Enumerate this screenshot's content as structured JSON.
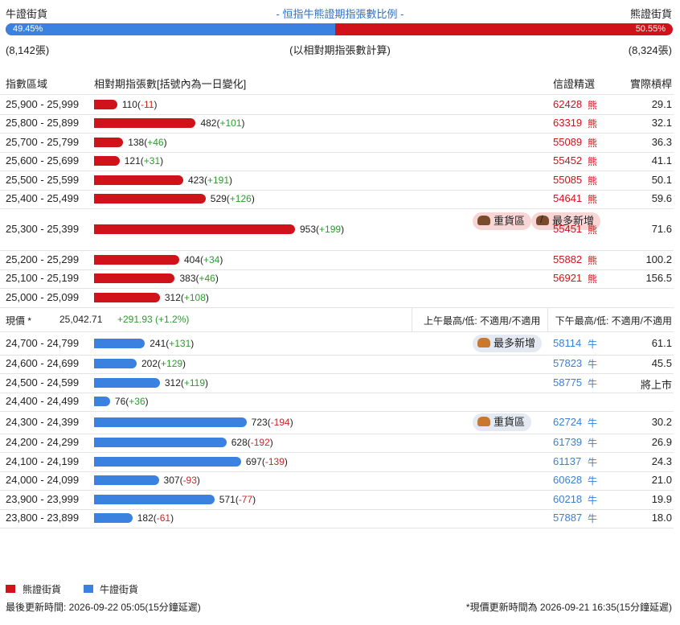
{
  "header": {
    "left": "牛證街貨",
    "title": "- 恒指牛熊證期指張數比例 -",
    "right": "熊證街貨",
    "bull_pct": {
      "value": 49.45,
      "label": "49.45%"
    },
    "bear_pct": {
      "value": 50.55,
      "label": "50.55%"
    },
    "bull_total": "(8,142張)",
    "note": "(以相對期指張數計算)",
    "bear_total": "(8,324張)"
  },
  "columns": [
    "指數區域",
    "相對期指張數[括號內為一日變化]",
    "信證精選",
    "實際槓桿"
  ],
  "bear_rows": [
    {
      "range": "25,900 - 25,999",
      "count": 110,
      "change": "-11",
      "code": "62428",
      "kind": "熊",
      "leverage": "29.1"
    },
    {
      "range": "25,800 - 25,899",
      "count": 482,
      "change": "+101",
      "code": "63319",
      "kind": "熊",
      "leverage": "32.1"
    },
    {
      "range": "25,700 - 25,799",
      "count": 138,
      "change": "+46",
      "code": "55089",
      "kind": "熊",
      "leverage": "36.3"
    },
    {
      "range": "25,600 - 25,699",
      "count": 121,
      "change": "+31",
      "code": "55452",
      "kind": "熊",
      "leverage": "41.1"
    },
    {
      "range": "25,500 - 25,599",
      "count": 423,
      "change": "+191",
      "code": "55085",
      "kind": "熊",
      "leverage": "50.1"
    },
    {
      "range": "25,400 - 25,499",
      "count": 529,
      "change": "+126",
      "code": "54641",
      "kind": "熊",
      "leverage": "59.6"
    },
    {
      "range": "25,300 - 25,399",
      "count": 953,
      "change": "+199",
      "tags": [
        "重貨區",
        "最多新增"
      ],
      "code": "55451",
      "kind": "熊",
      "leverage": "71.6"
    },
    {
      "range": "25,200 - 25,299",
      "count": 404,
      "change": "+34",
      "code": "55882",
      "kind": "熊",
      "leverage": "100.2"
    },
    {
      "range": "25,100 - 25,199",
      "count": 383,
      "change": "+46",
      "code": "56921",
      "kind": "熊",
      "leverage": "156.5"
    },
    {
      "range": "25,000 - 25,099",
      "count": 312,
      "change": "+108"
    }
  ],
  "price": {
    "label": "現價 *",
    "value": "25,042.71",
    "change": "+291.93 (+1.2%)",
    "am": "上午最高/低: 不適用/不適用",
    "pm": "下午最高/低: 不適用/不適用"
  },
  "bull_rows": [
    {
      "range": "24,700 - 24,799",
      "count": 241,
      "change": "+131",
      "tags": [
        "最多新增"
      ],
      "code": "58114",
      "kind": "牛",
      "leverage": "61.1"
    },
    {
      "range": "24,600 - 24,699",
      "count": 202,
      "change": "+129",
      "code": "57823",
      "kind": "牛",
      "leverage": "45.5"
    },
    {
      "range": "24,500 - 24,599",
      "count": 312,
      "change": "+119",
      "code": "58775",
      "kind": "牛",
      "leverage": "將上市"
    },
    {
      "range": "24,400 - 24,499",
      "count": 76,
      "change": "+36"
    },
    {
      "range": "24,300 - 24,399",
      "count": 723,
      "change": "-194",
      "tags": [
        "重貨區"
      ],
      "code": "62724",
      "kind": "牛",
      "leverage": "30.2"
    },
    {
      "range": "24,200 - 24,299",
      "count": 628,
      "change": "-192",
      "code": "61739",
      "kind": "牛",
      "leverage": "26.9"
    },
    {
      "range": "24,100 - 24,199",
      "count": 697,
      "change": "-139",
      "code": "61137",
      "kind": "牛",
      "leverage": "24.3"
    },
    {
      "range": "24,000 - 24,099",
      "count": 307,
      "change": "-93",
      "code": "60628",
      "kind": "牛",
      "leverage": "21.0"
    },
    {
      "range": "23,900 - 23,999",
      "count": 571,
      "change": "-77",
      "code": "60218",
      "kind": "牛",
      "leverage": "19.9"
    },
    {
      "range": "23,800 - 23,899",
      "count": 182,
      "change": "-61",
      "code": "57887",
      "kind": "牛",
      "leverage": "18.0"
    }
  ],
  "legend": [
    "熊證街貨",
    "牛證街貨"
  ],
  "footer": {
    "left": "最後更新時間: 2026-09-22 05:05(15分鐘延遲)",
    "right": "*現價更新時間為 2026-09-21 16:35(15分鐘延遲)"
  }
}
